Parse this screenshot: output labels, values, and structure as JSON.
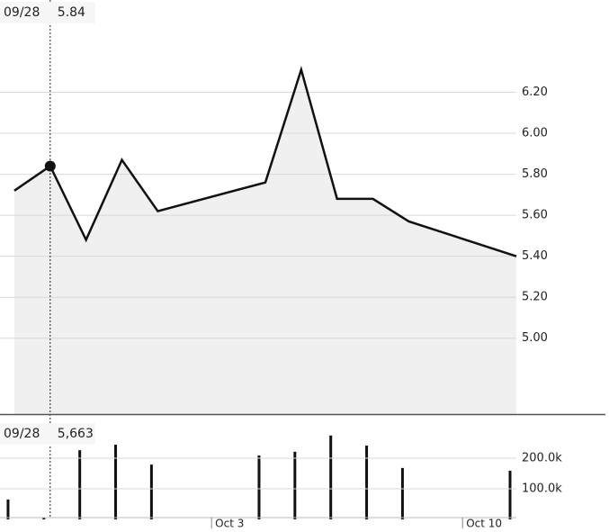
{
  "chart_data": [
    {
      "type": "area",
      "x": [
        1.5,
        2.5,
        3.5,
        4.5,
        5.5,
        8.5,
        9.5,
        10.5,
        11.5,
        12.5,
        15.5
      ],
      "series": [
        {
          "color": "#111111",
          "fill": "#f0f0f0",
          "values": [
            5.72,
            5.84,
            5.48,
            5.87,
            5.62,
            5.76,
            6.31,
            5.68,
            5.68,
            5.57,
            5.4
          ]
        }
      ],
      "xlim": [
        1.1,
        15.5
      ],
      "ylim": [
        4.63,
        6.65
      ],
      "yticks": [
        {
          "value": 5,
          "label": "5.00"
        },
        {
          "value": 5.2,
          "label": "5.20"
        },
        {
          "value": 5.4,
          "label": "5.40"
        },
        {
          "value": 5.6,
          "label": "5.60"
        },
        {
          "value": 5.8,
          "label": "5.80"
        },
        {
          "value": 6,
          "label": "6.00"
        },
        {
          "value": 6.2,
          "label": "6.20"
        }
      ],
      "grid": true,
      "crosshair": {
        "x": 2.5,
        "label": "09/28"
      }
    },
    {
      "type": "bar",
      "x": [
        1.5,
        2.5,
        3.5,
        4.5,
        5.5,
        8.5,
        9.5,
        10.5,
        11.5,
        12.5,
        15.5
      ],
      "values": [
        65000,
        5663,
        226000,
        244000,
        179000,
        209000,
        221000,
        274000,
        241000,
        168000,
        159000
      ],
      "value_labels": [
        null,
        "5,663",
        null,
        null,
        null,
        null,
        null,
        null,
        null,
        null,
        null
      ],
      "color": "#111111",
      "xlim": [
        1.1,
        15.5
      ],
      "ylim": [
        0,
        344000
      ],
      "yticks": [
        {
          "value": 100000,
          "label": "100.0k"
        },
        {
          "value": 200000,
          "label": "200.0k"
        }
      ],
      "xticks": [
        {
          "value": 7,
          "label": "Oct 3"
        },
        {
          "value": 14,
          "label": "Oct 10"
        }
      ],
      "grid": true,
      "crosshair": {
        "x": 2.5,
        "label": "09/28"
      }
    }
  ]
}
